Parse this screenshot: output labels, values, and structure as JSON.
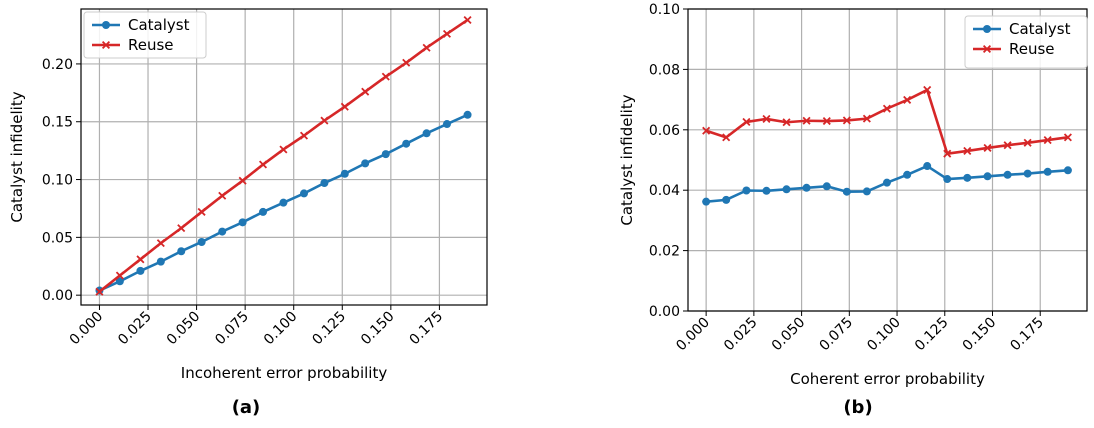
{
  "colors": {
    "catalyst": "#1f77b4",
    "reuse": "#d62728",
    "grid": "#b0b0b0"
  },
  "chart_data": [
    {
      "type": "line",
      "panel_label": "(a)",
      "xlabel": "Incoherent error probability",
      "ylabel": "Catalyst infidelity",
      "xlim": [
        -0.0095,
        0.1995
      ],
      "ylim": [
        -0.0085,
        0.2475
      ],
      "xticks": [
        0.0,
        0.025,
        0.05,
        0.075,
        0.1,
        0.125,
        0.15,
        0.175
      ],
      "xtick_labels": [
        "0.000",
        "0.025",
        "0.050",
        "0.075",
        "0.100",
        "0.125",
        "0.150",
        "0.175"
      ],
      "yticks": [
        0.0,
        0.05,
        0.1,
        0.15,
        0.2
      ],
      "ytick_labels": [
        "0.00",
        "0.05",
        "0.10",
        "0.15",
        "0.20"
      ],
      "grid": true,
      "legend_position": "top-left",
      "x": [
        0.0,
        0.0105,
        0.0211,
        0.0316,
        0.0421,
        0.0526,
        0.0632,
        0.0737,
        0.0842,
        0.0947,
        0.1053,
        0.1158,
        0.1263,
        0.1368,
        0.1474,
        0.1579,
        0.1684,
        0.1789,
        0.1895
      ],
      "series": [
        {
          "name": "Catalyst",
          "marker": "circle",
          "values": [
            0.004,
            0.012,
            0.021,
            0.029,
            0.038,
            0.046,
            0.055,
            0.063,
            0.072,
            0.08,
            0.088,
            0.097,
            0.105,
            0.114,
            0.122,
            0.131,
            0.14,
            0.148,
            0.156
          ]
        },
        {
          "name": "Reuse",
          "marker": "x",
          "values": [
            0.003,
            0.017,
            0.031,
            0.045,
            0.058,
            0.072,
            0.086,
            0.099,
            0.113,
            0.126,
            0.138,
            0.151,
            0.163,
            0.176,
            0.189,
            0.201,
            0.214,
            0.226,
            0.238
          ]
        }
      ]
    },
    {
      "type": "line",
      "panel_label": "(b)",
      "xlabel": "Coherent error probability",
      "ylabel": "Catalyst infidelity",
      "xlim": [
        -0.0095,
        0.1995
      ],
      "ylim": [
        0.0,
        0.1
      ],
      "xticks": [
        0.0,
        0.025,
        0.05,
        0.075,
        0.1,
        0.125,
        0.15,
        0.175
      ],
      "xtick_labels": [
        "0.000",
        "0.025",
        "0.050",
        "0.075",
        "0.100",
        "0.125",
        "0.150",
        "0.175"
      ],
      "yticks": [
        0.0,
        0.02,
        0.04,
        0.06,
        0.08,
        0.1
      ],
      "ytick_labels": [
        "0.00",
        "0.02",
        "0.04",
        "0.06",
        "0.08",
        "0.10"
      ],
      "grid": true,
      "legend_position": "top-right",
      "x": [
        0.0,
        0.0105,
        0.0211,
        0.0316,
        0.0421,
        0.0526,
        0.0632,
        0.0737,
        0.0842,
        0.0947,
        0.1053,
        0.1158,
        0.1263,
        0.1368,
        0.1474,
        0.1579,
        0.1684,
        0.1789,
        0.1895
      ],
      "series": [
        {
          "name": "Catalyst",
          "marker": "circle",
          "values": [
            0.0362,
            0.0368,
            0.0399,
            0.0398,
            0.0403,
            0.0408,
            0.0413,
            0.0395,
            0.0396,
            0.0425,
            0.0451,
            0.048,
            0.0437,
            0.0441,
            0.0446,
            0.0451,
            0.0455,
            0.0461,
            0.0466
          ]
        },
        {
          "name": "Reuse",
          "marker": "x",
          "values": [
            0.0597,
            0.0575,
            0.0626,
            0.0636,
            0.0625,
            0.063,
            0.0629,
            0.0631,
            0.0637,
            0.067,
            0.0699,
            0.0732,
            0.0521,
            0.053,
            0.054,
            0.0549,
            0.0557,
            0.0566,
            0.0575
          ]
        }
      ]
    }
  ]
}
